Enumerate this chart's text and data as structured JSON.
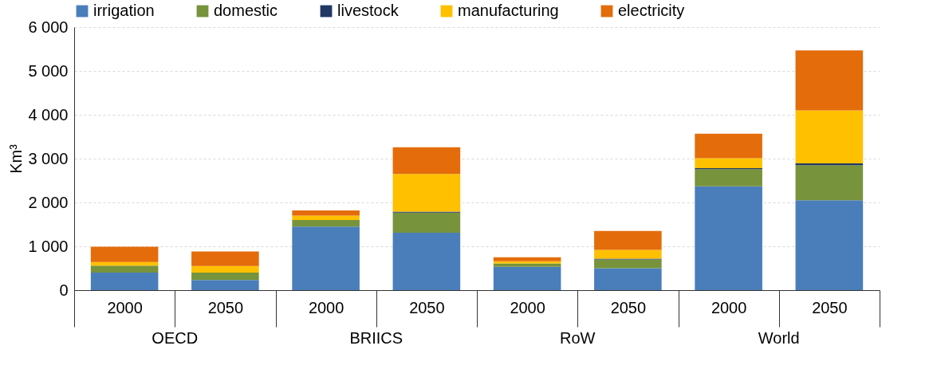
{
  "chart_data": {
    "type": "bar",
    "stacked": true,
    "ylabel": "Km³",
    "categories": [
      "2000",
      "2050",
      "2000",
      "2050",
      "2000",
      "2050",
      "2000",
      "2050"
    ],
    "annotations": [
      "OECD",
      "BRIICS",
      "RoW",
      "World"
    ],
    "series": [
      {
        "name": "irrigation",
        "color": "#4a7ebb",
        "values": [
          400,
          230,
          1450,
          1310,
          530,
          500,
          2370,
          2050
        ]
      },
      {
        "name": "domestic",
        "color": "#77933c",
        "values": [
          160,
          170,
          150,
          460,
          80,
          200,
          390,
          800
        ]
      },
      {
        "name": "livestock",
        "color": "#1f3864",
        "values": [
          null,
          null,
          null,
          20,
          null,
          20,
          20,
          40
        ]
      },
      {
        "name": "manufacturing",
        "color": "#ffc000",
        "values": [
          80,
          150,
          100,
          860,
          50,
          200,
          230,
          1210
        ]
      },
      {
        "name": "electricity",
        "color": "#e46c0a",
        "values": [
          350,
          330,
          120,
          610,
          90,
          430,
          560,
          1370
        ]
      }
    ],
    "ylim": [
      0,
      6000
    ],
    "yticks": [
      0,
      {
        "value": 1000,
        "label": "1 000"
      },
      {
        "value": 2000,
        "label": "2 000"
      },
      {
        "value": 3000,
        "label": "3 000"
      },
      {
        "value": 4000,
        "label": "4 000"
      },
      {
        "value": 5000,
        "label": "5 000"
      },
      {
        "value": 6000,
        "label": "6 000"
      }
    ],
    "grid": "y",
    "legend": "top"
  }
}
